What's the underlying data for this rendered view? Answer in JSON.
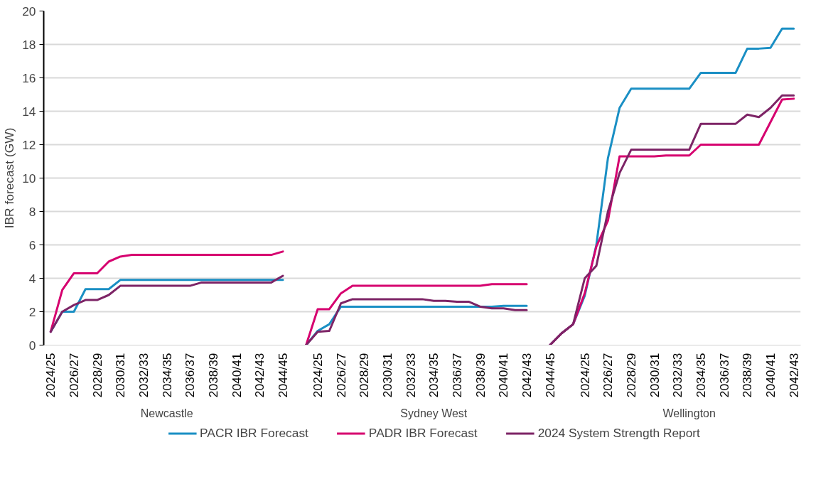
{
  "chart_data": {
    "type": "line",
    "ylabel": "IBR forecast (GW)",
    "categories": [
      "2024/25",
      null,
      "2026/27",
      null,
      "2028/29",
      null,
      "2030/31",
      null,
      "2032/33",
      null,
      "2034/35",
      null,
      "2036/37",
      null,
      "2038/39",
      null,
      "2040/41",
      null,
      "2042/43",
      null,
      "2044/45",
      null,
      null,
      "2024/25",
      null,
      "2026/27",
      null,
      "2028/29",
      null,
      "2030/31",
      null,
      "2032/33",
      null,
      "2034/35",
      null,
      "2036/37",
      null,
      "2038/39",
      null,
      "2040/41",
      null,
      "2042/43",
      null,
      "2044/45",
      null,
      null,
      "2024/25",
      null,
      "2026/27",
      null,
      "2028/29",
      null,
      "2030/31",
      null,
      "2032/33",
      null,
      "2034/35",
      null,
      "2036/37",
      null,
      "2038/39",
      null,
      "2040/41",
      null,
      "2042/43"
    ],
    "series": [
      {
        "name": "PACR IBR Forecast",
        "color": "#1a8fc4",
        "values": [
          0.8,
          2.0,
          2.0,
          3.35,
          3.35,
          3.35,
          3.9,
          3.9,
          3.9,
          3.9,
          3.9,
          3.9,
          3.9,
          3.9,
          3.9,
          3.9,
          3.9,
          3.9,
          3.9,
          3.9,
          3.9,
          null,
          0,
          0.85,
          1.25,
          2.3,
          2.3,
          2.3,
          2.3,
          2.3,
          2.3,
          2.3,
          2.3,
          2.3,
          2.3,
          2.3,
          2.3,
          2.3,
          2.3,
          2.35,
          2.35,
          2.35,
          null,
          0,
          0.7,
          1.25,
          2.95,
          6.0,
          11.2,
          14.2,
          15.35,
          15.35,
          15.35,
          15.35,
          15.35,
          15.35,
          16.3,
          16.3,
          16.3,
          16.3,
          17.75,
          17.75,
          17.8,
          18.95,
          18.95
        ]
      },
      {
        "name": "PADR IBR Forecast",
        "color": "#d6006f",
        "values": [
          0.8,
          3.3,
          4.3,
          4.3,
          4.3,
          5.0,
          5.3,
          5.4,
          5.4,
          5.4,
          5.4,
          5.4,
          5.4,
          5.4,
          5.4,
          5.4,
          5.4,
          5.4,
          5.4,
          5.4,
          5.6,
          null,
          0,
          2.15,
          2.15,
          3.1,
          3.55,
          3.55,
          3.55,
          3.55,
          3.55,
          3.55,
          3.55,
          3.55,
          3.55,
          3.55,
          3.55,
          3.55,
          3.65,
          3.65,
          3.65,
          3.65,
          null,
          0,
          0.7,
          1.25,
          3.1,
          5.9,
          7.45,
          11.3,
          11.3,
          11.3,
          11.3,
          11.35,
          11.35,
          11.35,
          12.0,
          12.0,
          12.0,
          12.0,
          12.0,
          12.0,
          13.35,
          14.7,
          14.75
        ]
      },
      {
        "name": "2024 System Strength Report",
        "color": "#7d2466",
        "values": [
          0.8,
          2.0,
          2.4,
          2.7,
          2.7,
          3.0,
          3.55,
          3.55,
          3.55,
          3.55,
          3.55,
          3.55,
          3.55,
          3.75,
          3.75,
          3.75,
          3.75,
          3.75,
          3.75,
          3.75,
          4.15,
          null,
          0,
          0.8,
          0.85,
          2.5,
          2.75,
          2.75,
          2.75,
          2.75,
          2.75,
          2.75,
          2.75,
          2.65,
          2.65,
          2.6,
          2.6,
          2.3,
          2.2,
          2.2,
          2.1,
          2.1,
          null,
          0,
          0.7,
          1.25,
          4.0,
          4.75,
          8.0,
          10.3,
          11.7,
          11.7,
          11.7,
          11.7,
          11.7,
          11.7,
          13.25,
          13.25,
          13.25,
          13.25,
          13.8,
          13.65,
          14.2,
          14.95,
          14.95
        ]
      }
    ],
    "annotations": [
      "Newcastle",
      "Sydney West",
      "Wellington"
    ],
    "ylim": [
      0,
      20
    ],
    "yticks": [
      0,
      2,
      4,
      6,
      8,
      10,
      12,
      14,
      16,
      18,
      20
    ],
    "grid": "y",
    "legend": "bottom",
    "marker": "none",
    "line_style": "solid"
  }
}
